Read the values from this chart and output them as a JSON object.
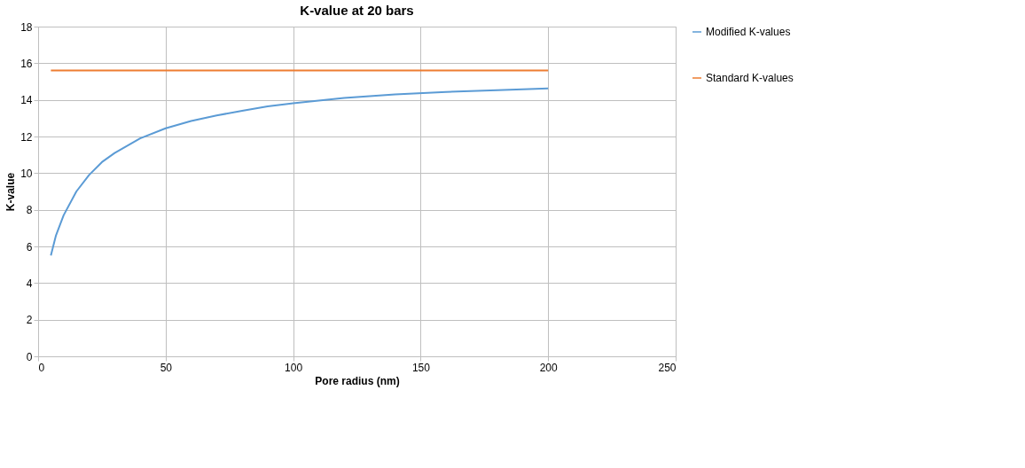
{
  "chart_data": {
    "type": "line",
    "title": "K-value at 20 bars",
    "xlabel": "Pore radius (nm)",
    "ylabel": "K-value",
    "xlim": [
      0,
      250
    ],
    "xticks": [
      0,
      50,
      100,
      150,
      200,
      250
    ],
    "ylim": [
      0,
      18
    ],
    "yticks": [
      0,
      2,
      4,
      6,
      8,
      10,
      12,
      14,
      16,
      18
    ],
    "grid": true,
    "legend": "right",
    "marker": "none",
    "line_style": "solid",
    "series": [
      {
        "name": "Modified K-values",
        "color": "#5b9bd5",
        "x": [
          5,
          7,
          10,
          15,
          20,
          25,
          30,
          40,
          50,
          60,
          70,
          80,
          90,
          100,
          120,
          140,
          160,
          180,
          200
        ],
        "values": [
          5.5,
          6.6,
          7.7,
          9.0,
          9.9,
          10.6,
          11.1,
          11.9,
          12.45,
          12.85,
          13.15,
          13.4,
          13.65,
          13.82,
          14.1,
          14.3,
          14.43,
          14.53,
          14.62
        ]
      },
      {
        "name": "Standard K-values",
        "color": "#ed7d31",
        "x": [
          5,
          200
        ],
        "values": [
          15.6,
          15.6
        ]
      }
    ]
  }
}
